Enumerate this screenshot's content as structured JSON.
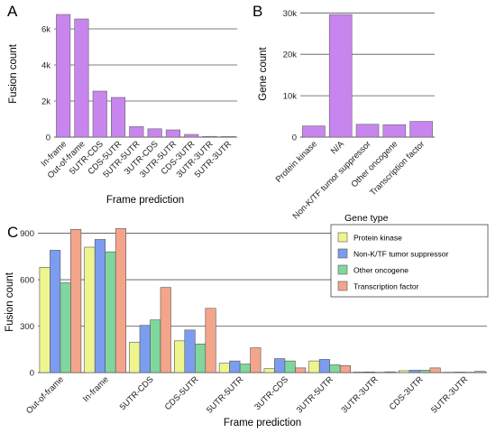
{
  "chart_data": [
    {
      "panel": "A",
      "type": "bar",
      "xlabel": "Frame prediction",
      "ylabel": "Fusion count",
      "ylim": [
        0,
        7000
      ],
      "yticks": [
        0,
        2000,
        4000,
        6000
      ],
      "ytick_labels": [
        "0",
        "2k",
        "4k",
        "6k"
      ],
      "grid": "horizontal",
      "color": "#c885ee",
      "categories": [
        "In-frame",
        "Out-of-frame",
        "5UTR-CDS",
        "CDS-5UTR",
        "5UTR-5UTR",
        "3UTR-CDS",
        "3UTR-5UTR",
        "CDS-3UTR",
        "3UTR-3UTR",
        "5UTR-3UTR"
      ],
      "values": [
        6800,
        6550,
        2550,
        2200,
        580,
        460,
        400,
        150,
        40,
        30
      ]
    },
    {
      "panel": "B",
      "type": "bar",
      "xlabel": "",
      "ylabel": "Gene count",
      "ylim": [
        0,
        30500
      ],
      "yticks": [
        0,
        10000,
        20000,
        30000
      ],
      "ytick_labels": [
        "0",
        "10k",
        "20k",
        "30k"
      ],
      "grid": "horizontal",
      "color": "#c885ee",
      "categories": [
        "Protein kinase",
        "N/A",
        "Non-K/TF tumor suppressor",
        "Other oncogene",
        "Transcription factor"
      ],
      "values": [
        2700,
        29600,
        3100,
        3000,
        3800
      ]
    },
    {
      "panel": "C",
      "type": "bar",
      "xlabel": "Frame prediction",
      "ylabel": "Fusion count",
      "ylim": [
        0,
        950
      ],
      "yticks": [
        0,
        300,
        600,
        900
      ],
      "ytick_labels": [
        "0",
        "300",
        "600",
        "900"
      ],
      "grid": "horizontal",
      "legend_title": "Gene type",
      "legend_position": "top-right",
      "categories": [
        "Out-of-frame",
        "In-frame",
        "5UTR-CDS",
        "CDS-5UTR",
        "5UTR-5UTR",
        "3UTR-CDS",
        "3UTR-5UTR",
        "3UTR-3UTR",
        "CDS-3UTR",
        "5UTR-3UTR"
      ],
      "series": [
        {
          "name": "Protein kinase",
          "color": "#eef58e",
          "values": [
            680,
            810,
            195,
            205,
            60,
            25,
            75,
            3,
            12,
            2
          ]
        },
        {
          "name": "Non-K/TF tumor suppressor",
          "color": "#7c9def",
          "values": [
            790,
            860,
            305,
            275,
            75,
            90,
            85,
            4,
            15,
            3
          ]
        },
        {
          "name": "Other oncogene",
          "color": "#80d69c",
          "values": [
            580,
            780,
            340,
            185,
            55,
            75,
            50,
            2,
            15,
            2
          ]
        },
        {
          "name": "Transcription factor",
          "color": "#f3a58c",
          "values": [
            925,
            930,
            550,
            415,
            160,
            30,
            45,
            5,
            30,
            8
          ]
        }
      ]
    }
  ]
}
